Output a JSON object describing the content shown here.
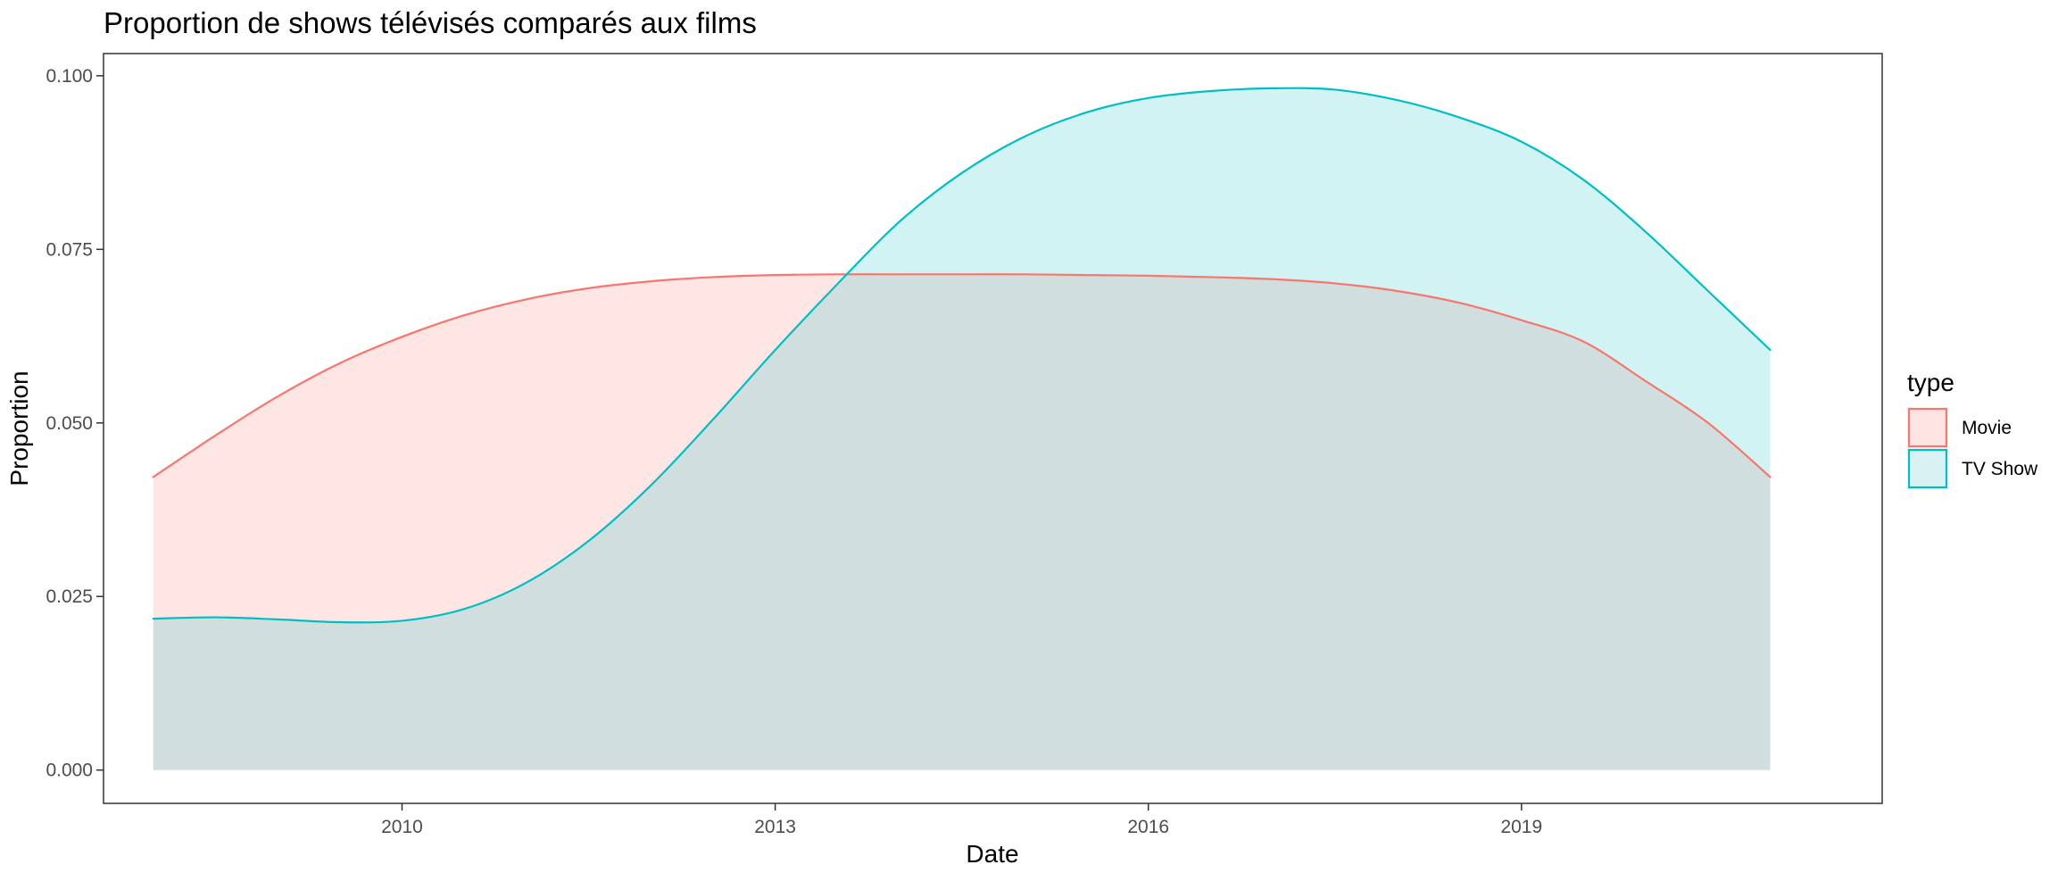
{
  "chart_data": {
    "type": "area",
    "title": "Proportion de shows télévisés comparés aux films",
    "xlabel": "Date",
    "ylabel": "Proportion",
    "xlim": [
      2007.6,
      2021.9
    ],
    "ylim": [
      -0.0048,
      0.1032
    ],
    "x_ticks": [
      2010,
      2013,
      2016,
      2019
    ],
    "x_tick_labels": [
      "2010",
      "2013",
      "2016",
      "2019"
    ],
    "y_ticks": [
      0,
      0.025,
      0.05,
      0.075,
      0.1
    ],
    "y_tick_labels": [
      "0.000",
      "0.025",
      "0.050",
      "0.075",
      "0.100"
    ],
    "grid": false,
    "legend": {
      "title": "type",
      "position": "right"
    },
    "x": [
      2008,
      2008.5,
      2009,
      2009.5,
      2010,
      2010.5,
      2011,
      2011.5,
      2012,
      2012.5,
      2013,
      2013.5,
      2014,
      2014.5,
      2015,
      2015.5,
      2016,
      2016.5,
      2017,
      2017.5,
      2018,
      2018.5,
      2019,
      2019.5,
      2020,
      2020.5,
      2021
    ],
    "series": [
      {
        "name": "Movie",
        "color": "#F8766D",
        "fill": "#FDE4E3",
        "values": [
          0.0422,
          0.0482,
          0.0538,
          0.0586,
          0.0624,
          0.0655,
          0.0678,
          0.0694,
          0.0704,
          0.071,
          0.0713,
          0.0714,
          0.0714,
          0.0714,
          0.0714,
          0.0713,
          0.0712,
          0.071,
          0.0707,
          0.0701,
          0.069,
          0.0673,
          0.0648,
          0.0617,
          0.056,
          0.05,
          0.0422
        ]
      },
      {
        "name": "TV Show",
        "color": "#00BFC4",
        "fill": "#D8F2F3",
        "values": [
          0.0218,
          0.022,
          0.0217,
          0.0213,
          0.0215,
          0.0232,
          0.027,
          0.033,
          0.041,
          0.0505,
          0.0605,
          0.07,
          0.079,
          0.086,
          0.0912,
          0.0947,
          0.0968,
          0.0978,
          0.0982,
          0.098,
          0.0965,
          0.094,
          0.0905,
          0.085,
          0.0775,
          0.069,
          0.0605
        ]
      }
    ]
  }
}
